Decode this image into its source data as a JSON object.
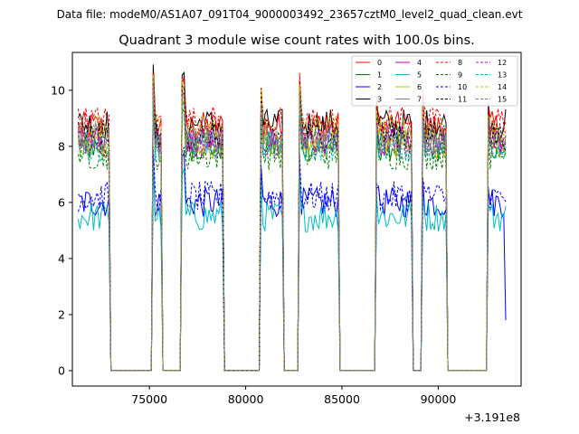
{
  "suptitle": "Data file: modeM0/AS1A07_091T04_9000003492_23657cztM0_level2_quad_clean.evt",
  "chart_data": {
    "type": "line",
    "title": "Quadrant 3 module wise count rates with 100.0s bins.",
    "xlabel": "",
    "ylabel": "",
    "x_offset_label": "+3.191e8",
    "xlim": [
      71000,
      94300
    ],
    "ylim": [
      -0.55,
      11.35
    ],
    "x_ticks": [
      75000,
      80000,
      85000,
      90000
    ],
    "x_tick_labels": [
      "75000",
      "80000",
      "85000",
      "90000"
    ],
    "y_ticks": [
      0,
      2,
      4,
      6,
      8,
      10
    ],
    "y_tick_labels": [
      "0",
      "2",
      "4",
      "6",
      "8",
      "10"
    ],
    "bin_size_s": 100,
    "x_start": 71300,
    "x_end": 93500,
    "gti_on": [
      [
        71300,
        72950
      ],
      [
        75150,
        75600
      ],
      [
        76700,
        78800
      ],
      [
        80750,
        81950
      ],
      [
        82750,
        84850
      ],
      [
        86750,
        88650
      ],
      [
        89150,
        90450
      ],
      [
        92550,
        93500
      ]
    ],
    "legend": {
      "position": "top-right",
      "columns": 4,
      "fontsize_note": "small"
    },
    "series": [
      {
        "name": "0",
        "color": "#ff0000",
        "dash": "solid",
        "level": 8.7
      },
      {
        "name": "1",
        "color": "#008000",
        "dash": "solid",
        "level": 8.0
      },
      {
        "name": "2",
        "color": "#0000ff",
        "dash": "solid",
        "level": 6.0
      },
      {
        "name": "3",
        "color": "#000000",
        "dash": "solid",
        "level": 8.8
      },
      {
        "name": "4",
        "color": "#bf00bf",
        "dash": "solid",
        "level": 8.2
      },
      {
        "name": "5",
        "color": "#00bfbf",
        "dash": "solid",
        "level": 5.5
      },
      {
        "name": "6",
        "color": "#bfbf00",
        "dash": "solid",
        "level": 8.1
      },
      {
        "name": "7",
        "color": "#808080",
        "dash": "solid",
        "level": 8.3
      },
      {
        "name": "8",
        "color": "#ff0000",
        "dash": "dashed",
        "level": 8.9
      },
      {
        "name": "9",
        "color": "#008000",
        "dash": "dashed",
        "level": 7.7
      },
      {
        "name": "10",
        "color": "#0000ff",
        "dash": "dashed",
        "level": 6.2
      },
      {
        "name": "11",
        "color": "#000000",
        "dash": "dashed",
        "level": 8.4
      },
      {
        "name": "12",
        "color": "#bf00bf",
        "dash": "dashed",
        "level": 8.1
      },
      {
        "name": "13",
        "color": "#00bfbf",
        "dash": "dashed",
        "level": 8.0
      },
      {
        "name": "14",
        "color": "#bfbf00",
        "dash": "dashed",
        "level": 8.6
      },
      {
        "name": "15",
        "color": "#808080",
        "dash": "dashed",
        "level": 8.2
      }
    ],
    "spike_peaks": [
      [
        75300,
        10.6
      ],
      [
        76800,
        10.3
      ],
      [
        80900,
        10.0
      ],
      [
        82950,
        10.2
      ],
      [
        86850,
        9.4
      ],
      [
        89300,
        9.6
      ],
      [
        92650,
        9.3
      ]
    ],
    "end_value_series_2": 1.8
  }
}
